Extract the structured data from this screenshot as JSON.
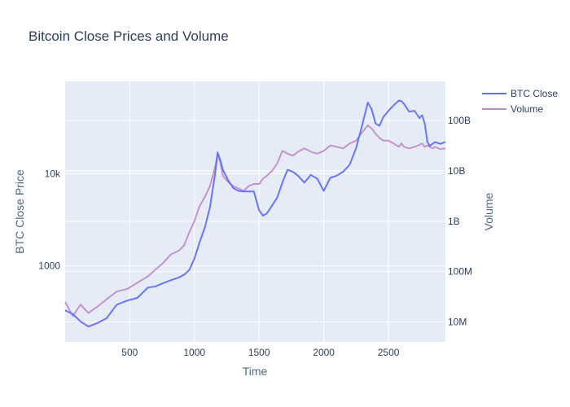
{
  "chart_data": {
    "type": "line",
    "title": "Bitcoin Close Prices and Volume",
    "xlabel": "Time",
    "ylabel": "BTC Close Price",
    "y2label": "Volume",
    "xlim": [
      1,
      2940
    ],
    "ylim": [
      150,
      100000
    ],
    "y2lim": [
      4000000,
      600000000000
    ],
    "yscale": "log",
    "y2scale": "log",
    "x_ticks": [
      {
        "value": 500,
        "label": "500"
      },
      {
        "value": 1000,
        "label": "1000"
      },
      {
        "value": 1500,
        "label": "1500"
      },
      {
        "value": 2000,
        "label": "2000"
      },
      {
        "value": 2500,
        "label": "2500"
      }
    ],
    "y_ticks": [
      {
        "value": 1000,
        "label": "1000"
      },
      {
        "value": 10000,
        "label": "10k"
      }
    ],
    "y2_ticks": [
      {
        "value": 10000000,
        "label": "10M"
      },
      {
        "value": 100000000,
        "label": "100M"
      },
      {
        "value": 1000000000,
        "label": "1B"
      },
      {
        "value": 10000000000,
        "label": "10B"
      },
      {
        "value": 100000000000,
        "label": "100B"
      }
    ],
    "legend_position": "top-right",
    "series": [
      {
        "name": "BTC Close",
        "axis": "y",
        "color": "#636efa",
        "x": [
          1,
          60,
          120,
          180,
          250,
          320,
          400,
          480,
          560,
          640,
          700,
          760,
          820,
          880,
          920,
          960,
          1000,
          1040,
          1080,
          1120,
          1160,
          1180,
          1200,
          1220,
          1260,
          1300,
          1340,
          1380,
          1420,
          1460,
          1500,
          1530,
          1560,
          1600,
          1640,
          1680,
          1720,
          1760,
          1800,
          1850,
          1900,
          1950,
          2000,
          2050,
          2100,
          2150,
          2200,
          2250,
          2300,
          2340,
          2370,
          2400,
          2430,
          2460,
          2500,
          2540,
          2580,
          2600,
          2620,
          2660,
          2700,
          2740,
          2760,
          2780,
          2800,
          2820,
          2840,
          2860,
          2900,
          2940
        ],
        "y": [
          330,
          300,
          250,
          220,
          240,
          270,
          380,
          420,
          450,
          580,
          600,
          650,
          700,
          750,
          800,
          900,
          1200,
          1800,
          2600,
          4300,
          10000,
          17000,
          14000,
          11000,
          8500,
          7000,
          6500,
          6400,
          6400,
          6400,
          4000,
          3500,
          3700,
          4500,
          5500,
          8000,
          11000,
          10500,
          9500,
          8000,
          9700,
          8800,
          6500,
          9000,
          9500,
          10500,
          12500,
          19000,
          35000,
          59000,
          50000,
          35000,
          33000,
          41000,
          48000,
          55000,
          62000,
          61000,
          57000,
          47000,
          48000,
          40000,
          43000,
          35000,
          22000,
          20000,
          21000,
          22000,
          21000,
          22000
        ]
      },
      {
        "name": "Volume",
        "axis": "y2",
        "color": "#c08ac9",
        "x": [
          1,
          60,
          120,
          180,
          250,
          320,
          400,
          480,
          560,
          640,
          700,
          760,
          820,
          880,
          920,
          960,
          1000,
          1040,
          1080,
          1120,
          1160,
          1180,
          1200,
          1220,
          1260,
          1300,
          1340,
          1380,
          1420,
          1460,
          1500,
          1530,
          1560,
          1600,
          1640,
          1680,
          1720,
          1760,
          1800,
          1850,
          1900,
          1950,
          2000,
          2050,
          2100,
          2150,
          2200,
          2250,
          2300,
          2340,
          2370,
          2400,
          2430,
          2460,
          2500,
          2540,
          2580,
          2600,
          2620,
          2660,
          2700,
          2740,
          2760,
          2780,
          2800,
          2820,
          2840,
          2860,
          2900,
          2940
        ],
        "y": [
          25000000,
          13000000,
          22000000,
          15000000,
          20000000,
          28000000,
          40000000,
          45000000,
          60000000,
          80000000,
          110000000,
          150000000,
          220000000,
          260000000,
          330000000,
          600000000,
          1000000000,
          2000000000,
          3000000000,
          5000000000,
          12000000000,
          22000000000,
          15000000000,
          8000000000,
          6000000000,
          5000000000,
          4500000000,
          4000000000,
          5000000000,
          5500000000,
          5500000000,
          7000000000,
          8000000000,
          10000000000,
          14000000000,
          25000000000,
          22000000000,
          20000000000,
          24000000000,
          28000000000,
          24000000000,
          22000000000,
          25000000000,
          32000000000,
          30000000000,
          28000000000,
          35000000000,
          40000000000,
          60000000000,
          80000000000,
          70000000000,
          55000000000,
          45000000000,
          40000000000,
          40000000000,
          35000000000,
          30000000000,
          35000000000,
          30000000000,
          28000000000,
          30000000000,
          33000000000,
          35000000000,
          30000000000,
          32000000000,
          30000000000,
          28000000000,
          30000000000,
          27000000000,
          28000000000
        ]
      }
    ]
  }
}
